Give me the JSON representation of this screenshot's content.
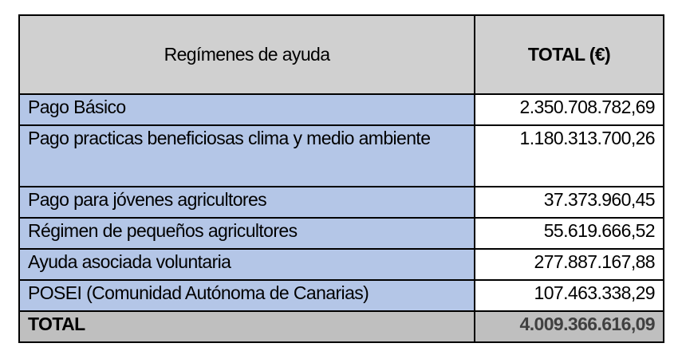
{
  "table": {
    "header": [
      "Regímenes de ayuda",
      "TOTAL (€)"
    ],
    "rows": [
      [
        "Pago Básico",
        "2.350.708.782,69"
      ],
      [
        "Pago practicas beneficiosas clima y medio ambiente",
        "1.180.313.700,26"
      ],
      [
        "Pago para jóvenes agricultores",
        "37.373.960,45"
      ],
      [
        "Régimen de pequeños agricultores",
        "55.619.666,52"
      ],
      [
        "Ayuda asociada voluntaria",
        "277.887.167,88"
      ],
      [
        "POSEI (Comunidad Autónoma de Canarias)",
        "107.463.338,29"
      ]
    ],
    "total": [
      "TOTAL",
      "4.009.366.616,09"
    ]
  }
}
